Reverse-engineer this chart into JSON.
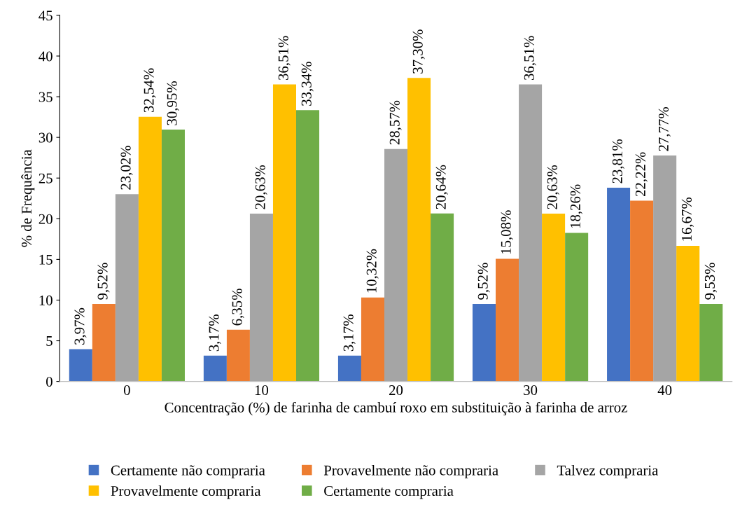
{
  "chart_data": {
    "type": "bar",
    "xlabel": "Concentração (%) de farinha de cambuí roxo em substituição à farinha de arroz",
    "ylabel": "% de Frequência",
    "categories": [
      "0",
      "10",
      "20",
      "30",
      "40"
    ],
    "series": [
      {
        "name": "Certamente não compraria",
        "color": "#4472c4",
        "values": [
          3.97,
          3.17,
          3.17,
          9.52,
          23.81
        ],
        "value_labels": [
          "3,97%",
          "3,17%",
          "3,17%",
          "9,52%",
          "23,81%"
        ]
      },
      {
        "name": "Provavelmente não compraria",
        "color": "#ed7d31",
        "values": [
          9.52,
          6.35,
          10.32,
          15.08,
          22.22
        ],
        "value_labels": [
          "9,52%",
          "6,35%",
          "10,32%",
          "15,08%",
          "22,22%"
        ]
      },
      {
        "name": "Talvez compraria",
        "color": "#a5a5a5",
        "values": [
          23.02,
          20.63,
          28.57,
          36.51,
          27.77
        ],
        "value_labels": [
          "23,02%",
          "20,63%",
          "28,57%",
          "36,51%",
          "27,77%"
        ]
      },
      {
        "name": "Provavelmente compraria",
        "color": "#ffc000",
        "values": [
          32.54,
          36.51,
          37.3,
          20.63,
          16.67
        ],
        "value_labels": [
          "32,54%",
          "36,51%",
          "37,30%",
          "20,63%",
          "16,67%"
        ]
      },
      {
        "name": "Certamente compraria",
        "color": "#70ad47",
        "values": [
          30.95,
          33.34,
          20.64,
          18.26,
          9.53
        ],
        "value_labels": [
          "30,95%",
          "33,34%",
          "20,64%",
          "18,26%",
          "9,53%"
        ]
      }
    ],
    "ylim": [
      0,
      45
    ],
    "yticks": [
      0,
      5,
      10,
      15,
      20,
      25,
      30,
      35,
      40,
      45
    ],
    "grid": false,
    "legend": "bottom"
  }
}
